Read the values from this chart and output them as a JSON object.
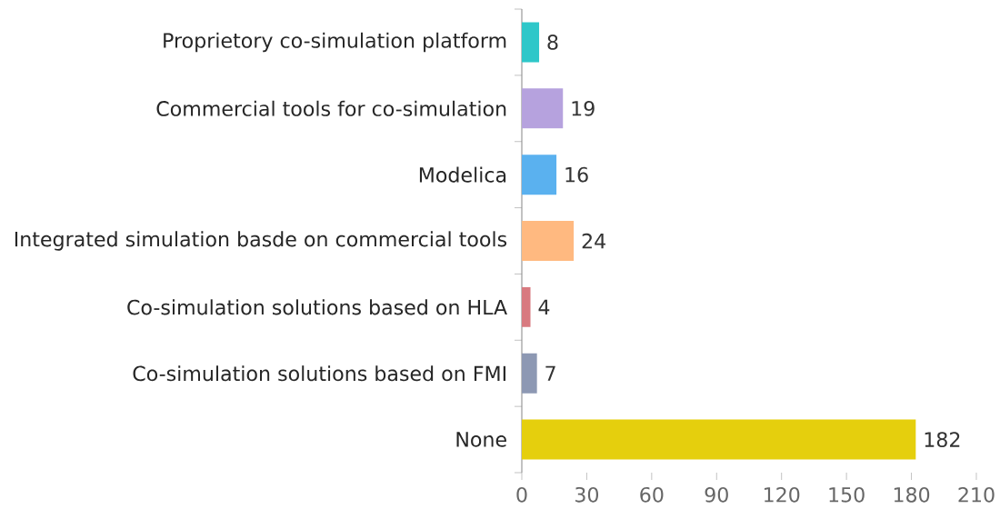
{
  "chart_data": {
    "type": "bar",
    "orientation": "horizontal",
    "categories": [
      "Proprietory co-simulation platform",
      "Commercial tools for co-simulation",
      "Modelica",
      "Integrated simulation basde on commercial tools",
      "Co-simulation solutions based on HLA",
      "Co-simulation solutions based on FMI",
      "None"
    ],
    "values": [
      8,
      19,
      16,
      24,
      4,
      7,
      182
    ],
    "colors": [
      "#2ec7c9",
      "#b6a2de",
      "#5ab1ef",
      "#ffb980",
      "#d87a80",
      "#8d98b3",
      "#e5cf0d"
    ],
    "xlim": [
      0,
      210
    ],
    "xticks": [
      0,
      30,
      60,
      90,
      120,
      150,
      180,
      210
    ],
    "data_labels": true
  }
}
